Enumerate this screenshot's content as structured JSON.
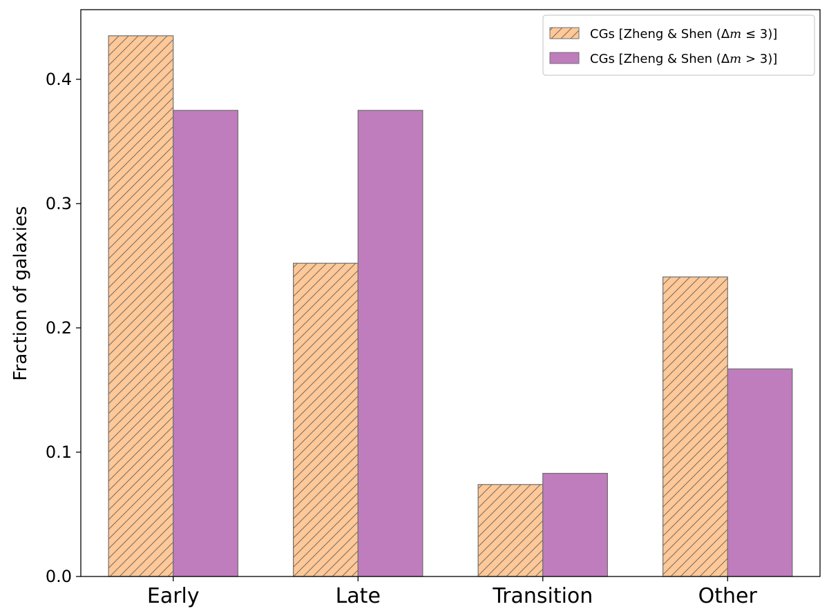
{
  "chart_data": {
    "type": "bar",
    "categories": [
      "Early",
      "Late",
      "Transition",
      "Other"
    ],
    "series": [
      {
        "name": "CGs [Zheng & Shen (Δm ≤ 3)]",
        "legend_label": "CGs [Zheng & Shen (Δ",
        "legend_math_var": "m",
        "legend_suffix": " ≤ 3)]",
        "values": [
          0.435,
          0.252,
          0.074,
          0.241
        ],
        "color": "#ffc896",
        "edge_color": "#6e6e6e",
        "hatch": "diagonal"
      },
      {
        "name": "CGs [Zheng & Shen (Δm > 3)]",
        "legend_label": "CGs [Zheng & Shen (Δ",
        "legend_math_var": "m",
        "legend_suffix": " > 3)]",
        "values": [
          0.375,
          0.375,
          0.083,
          0.167
        ],
        "color": "#bf7dbd",
        "edge_color": "#6e6e6e",
        "hatch": "none"
      }
    ],
    "xlabel": "",
    "ylabel": "Fraction of galaxies",
    "ylim": [
      0.0,
      0.456
    ],
    "yticks": [
      0.0,
      0.1,
      0.2,
      0.3,
      0.4
    ],
    "ytick_labels": [
      "0.0",
      "0.1",
      "0.2",
      "0.3",
      "0.4"
    ],
    "grid": false,
    "legend_position": "top-right"
  }
}
